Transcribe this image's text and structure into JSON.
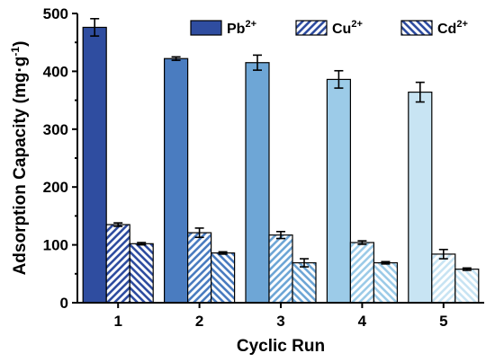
{
  "chart_data": {
    "type": "bar",
    "xlabel": "Cyclic Run",
    "ylabel": "Adsorption Capacity (mg·g",
    "ylabel_sup": "-1",
    "ylabel_close": ")",
    "categories": [
      "1",
      "2",
      "3",
      "4",
      "5"
    ],
    "ylim": [
      0,
      500
    ],
    "yticks": [
      "0",
      "100",
      "200",
      "300",
      "400",
      "500"
    ],
    "grid": false,
    "legend_position": "top-right",
    "series": [
      {
        "name": "Pb",
        "name_sup": "2+",
        "pattern": "solid",
        "values": [
          476,
          422,
          415,
          386,
          364
        ],
        "errors": [
          15,
          3,
          13,
          15,
          17
        ],
        "colors": [
          "#2f4da0",
          "#4a7cc0",
          "#6ea6d6",
          "#9ccbe8",
          "#c8e4f3"
        ]
      },
      {
        "name": "Cu",
        "name_sup": "2+",
        "pattern": "diagonal-up",
        "values": [
          135,
          121,
          117,
          104,
          84
        ],
        "errors": [
          3,
          8,
          6,
          3,
          8
        ],
        "colors": [
          "#2f4da0",
          "#4a7cc0",
          "#6ea6d6",
          "#9ccbe8",
          "#c8e4f3"
        ]
      },
      {
        "name": "Cd",
        "name_sup": "2+",
        "pattern": "diagonal-down",
        "values": [
          102,
          86,
          69,
          69,
          58
        ],
        "errors": [
          2,
          2,
          7,
          2,
          2
        ],
        "colors": [
          "#2f4da0",
          "#4a7cc0",
          "#6ea6d6",
          "#9ccbe8",
          "#c8e4f3"
        ]
      }
    ],
    "legend_color": "#2f4da0"
  }
}
